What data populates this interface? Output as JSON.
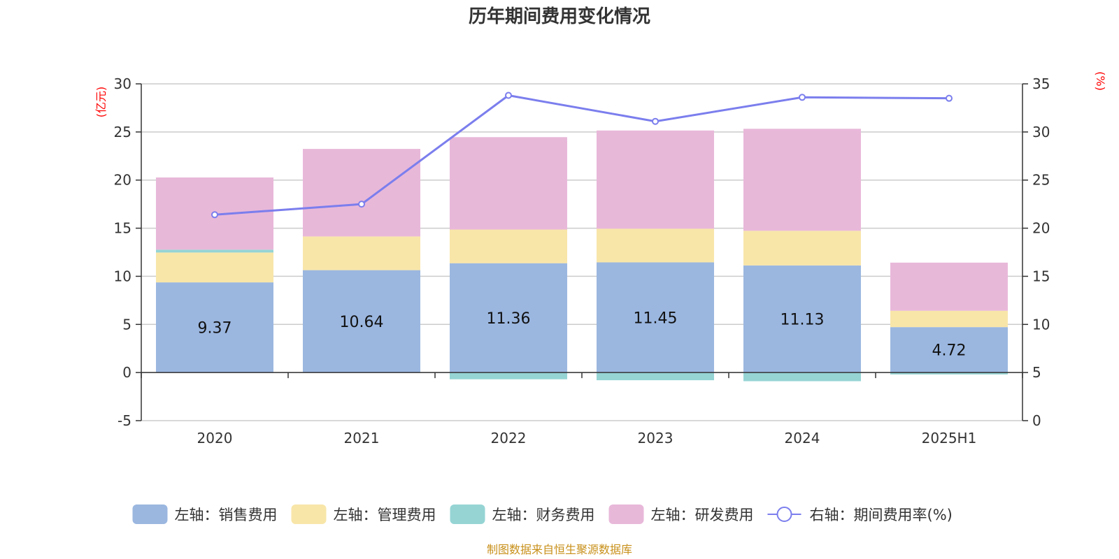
{
  "chart_data": {
    "type": "bar",
    "title": "历年期间费用变化情况",
    "categories": [
      "2020",
      "2021",
      "2022",
      "2023",
      "2024",
      "2025H1"
    ],
    "stacked": true,
    "left_axis": {
      "unit_label": "(亿元)",
      "ylim": [
        -5,
        30
      ],
      "ticks": [
        -5,
        0,
        5,
        10,
        15,
        20,
        25,
        30
      ],
      "tick_labels": [
        "-5",
        "0",
        "5",
        "10",
        "15",
        "20",
        "25",
        "30"
      ]
    },
    "right_axis": {
      "unit_label": "(%)",
      "ylim": [
        0,
        35
      ],
      "ticks": [
        0,
        5,
        10,
        15,
        20,
        25,
        30,
        35
      ],
      "tick_labels": [
        "0",
        "5",
        "10",
        "15",
        "20",
        "25",
        "30",
        "35"
      ]
    },
    "grid": true,
    "legend_position": "bottom",
    "series": [
      {
        "name": "左轴：销售费用",
        "type": "bar",
        "axis": "left",
        "color": "#9bb7e0",
        "values": [
          9.37,
          10.64,
          11.36,
          11.45,
          11.13,
          4.72
        ],
        "show_labels": true
      },
      {
        "name": "左轴：管理费用",
        "type": "bar",
        "axis": "left",
        "color": "#f8e6a9",
        "values": [
          3.1,
          3.5,
          3.5,
          3.5,
          3.6,
          1.7
        ],
        "show_labels": false
      },
      {
        "name": "左轴：财务费用",
        "type": "bar",
        "axis": "left",
        "color": "#96d4d4",
        "values": [
          0.3,
          0.0,
          -0.7,
          -0.8,
          -0.9,
          -0.2
        ],
        "show_labels": false
      },
      {
        "name": "左轴：研发费用",
        "type": "bar",
        "axis": "left",
        "color": "#e8b8d9",
        "values": [
          7.5,
          9.1,
          9.6,
          10.2,
          10.6,
          5.0
        ],
        "show_labels": false
      },
      {
        "name": "右轴：期间费用率(%)",
        "type": "line",
        "axis": "right",
        "color": "#7b7eed",
        "values": [
          21.4,
          22.5,
          33.8,
          31.1,
          33.6,
          33.5
        ],
        "show_labels": false
      }
    ],
    "source_note": "制图数据来自恒生聚源数据库"
  }
}
